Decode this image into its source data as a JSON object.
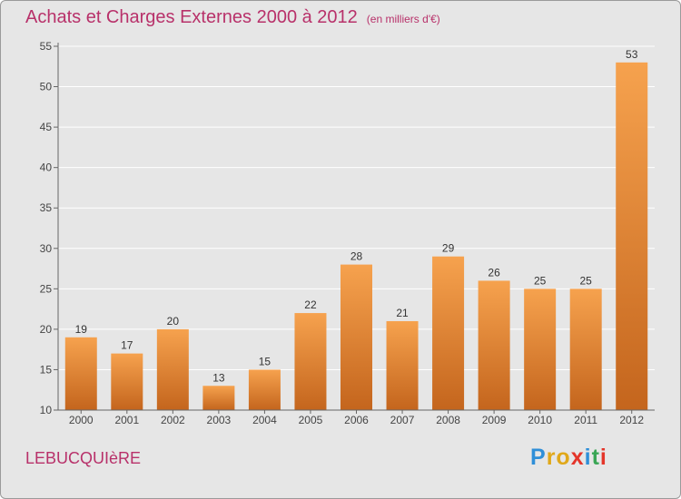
{
  "title": "Achats et Charges Externes 2000 à 2012",
  "unit_note": "(en milliers d'€)",
  "commune": "LEBUCQUIèRE",
  "brand": {
    "letters": [
      "P",
      "r",
      "o",
      "x",
      "i",
      "t",
      "i"
    ],
    "colors": [
      "#2f8fd8",
      "#e0a81a",
      "#e0a81a",
      "#e4352a",
      "#2f8fd8",
      "#3aa655",
      "#e4352a"
    ]
  },
  "colors": {
    "title": "#b8316a",
    "bar_top": "#f6a24e",
    "bar_bottom": "#c4651d",
    "axis": "#666666",
    "grid": "#ffffff",
    "plot_bg": "#e6e6e6"
  },
  "chart_data": {
    "type": "bar",
    "title": "Achats et Charges Externes 2000 à 2012",
    "subtitle": "(en milliers d'€)",
    "categories": [
      "2000",
      "2001",
      "2002",
      "2003",
      "2004",
      "2005",
      "2006",
      "2007",
      "2008",
      "2009",
      "2010",
      "2011",
      "2012"
    ],
    "values": [
      19,
      17,
      20,
      13,
      15,
      22,
      28,
      21,
      29,
      26,
      25,
      25,
      53
    ],
    "ylim": [
      10,
      55
    ],
    "yticks": [
      10,
      15,
      20,
      25,
      30,
      35,
      40,
      45,
      50,
      55
    ],
    "grid": true,
    "data_labels": true
  }
}
